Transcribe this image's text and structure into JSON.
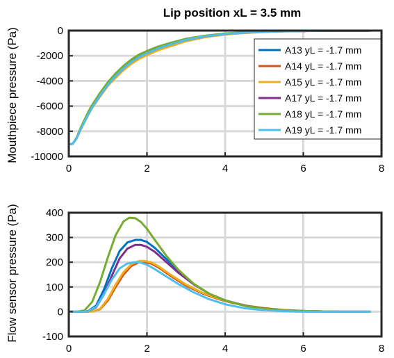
{
  "chart_data": [
    {
      "type": "line",
      "title": "Lip position xL = 3.5 mm",
      "xlabel": "",
      "ylabel": "Mouthpiece pressure (Pa)",
      "xlim": [
        0,
        8
      ],
      "ylim": [
        -10000,
        0
      ],
      "xticks": [
        "0",
        "2",
        "4",
        "6",
        "8"
      ],
      "yticks": [
        "0",
        "-2000",
        "-4000",
        "-6000",
        "-8000",
        "-10000"
      ],
      "grid": true,
      "legend_position": "top-right",
      "series": [
        {
          "name": "A13 yL = -1.7 mm",
          "color": "#0072BD",
          "x": [
            0,
            0.1,
            0.2,
            0.3,
            0.4,
            0.5,
            0.6,
            0.8,
            1.0,
            1.2,
            1.4,
            1.6,
            1.8,
            2.0,
            2.3,
            2.6,
            3.0,
            3.5,
            4.0,
            4.5,
            5.0,
            5.5,
            6.0,
            6.5,
            7.0,
            7.7
          ],
          "y": [
            -9050,
            -9000,
            -8550,
            -7850,
            -7200,
            -6600,
            -6050,
            -5100,
            -4250,
            -3550,
            -2950,
            -2450,
            -2050,
            -1750,
            -1350,
            -1050,
            -700,
            -430,
            -250,
            -150,
            -90,
            -50,
            -30,
            -15,
            -10,
            -5
          ]
        },
        {
          "name": "A14 yL = -1.7 mm",
          "color": "#D95319",
          "x": [
            0,
            0.1,
            0.2,
            0.3,
            0.4,
            0.5,
            0.6,
            0.8,
            1.0,
            1.2,
            1.4,
            1.6,
            1.8,
            2.0,
            2.3,
            2.6,
            3.0,
            3.5,
            4.0,
            4.5,
            5.0,
            5.5,
            6.0,
            6.5,
            7.0,
            7.7
          ],
          "y": [
            -9050,
            -9000,
            -8550,
            -7850,
            -7250,
            -6650,
            -6100,
            -5200,
            -4350,
            -3650,
            -3050,
            -2550,
            -2150,
            -1850,
            -1450,
            -1150,
            -780,
            -480,
            -290,
            -170,
            -100,
            -60,
            -35,
            -18,
            -10,
            -5
          ]
        },
        {
          "name": "A15 yL = -1.7 mm",
          "color": "#EDB120",
          "x": [
            0,
            0.1,
            0.2,
            0.3,
            0.4,
            0.5,
            0.6,
            0.8,
            1.0,
            1.2,
            1.4,
            1.6,
            1.8,
            2.0,
            2.3,
            2.6,
            3.0,
            3.5,
            4.0,
            4.5,
            5.0,
            5.5,
            6.0,
            6.5,
            7.0,
            7.7
          ],
          "y": [
            -9050,
            -9000,
            -8550,
            -7900,
            -7300,
            -6700,
            -6150,
            -5250,
            -4400,
            -3750,
            -3150,
            -2650,
            -2250,
            -1950,
            -1550,
            -1250,
            -850,
            -520,
            -320,
            -190,
            -110,
            -65,
            -40,
            -20,
            -10,
            -5
          ]
        },
        {
          "name": "A17 yL = -1.7 mm",
          "color": "#7E2F8E",
          "x": [
            0,
            0.1,
            0.2,
            0.3,
            0.4,
            0.5,
            0.6,
            0.8,
            1.0,
            1.2,
            1.4,
            1.6,
            1.8,
            2.0,
            2.3,
            2.6,
            3.0,
            3.5,
            4.0,
            4.5,
            5.0,
            5.5,
            6.0,
            6.5,
            7.0,
            7.7
          ],
          "y": [
            -9050,
            -9000,
            -8550,
            -7850,
            -7200,
            -6600,
            -6050,
            -5150,
            -4300,
            -3600,
            -3000,
            -2500,
            -2100,
            -1800,
            -1400,
            -1100,
            -740,
            -450,
            -270,
            -160,
            -95,
            -55,
            -32,
            -16,
            -10,
            -5
          ]
        },
        {
          "name": "A18 yL = -1.7 mm",
          "color": "#77AC30",
          "x": [
            0,
            0.1,
            0.2,
            0.3,
            0.4,
            0.5,
            0.6,
            0.8,
            1.0,
            1.2,
            1.4,
            1.6,
            1.8,
            2.0,
            2.3,
            2.6,
            3.0,
            3.5,
            4.0,
            4.5,
            5.0,
            5.5,
            6.0,
            6.5,
            7.0,
            7.7
          ],
          "y": [
            -9050,
            -9000,
            -8500,
            -7750,
            -7100,
            -6450,
            -5900,
            -4950,
            -4100,
            -3400,
            -2800,
            -2300,
            -1900,
            -1620,
            -1250,
            -980,
            -650,
            -400,
            -230,
            -140,
            -80,
            -45,
            -25,
            -12,
            -8,
            -5
          ]
        },
        {
          "name": "A19 yL = -1.7 mm",
          "color": "#4DBEEE",
          "x": [
            0,
            0.1,
            0.2,
            0.3,
            0.4,
            0.5,
            0.6,
            0.8,
            1.0,
            1.2,
            1.4,
            1.6,
            1.8,
            2.0,
            2.3,
            2.6,
            3.0,
            3.5,
            4.0,
            4.5,
            5.0,
            5.5,
            6.0,
            6.5,
            7.0,
            7.7
          ],
          "y": [
            -9050,
            -9000,
            -8550,
            -7850,
            -7250,
            -6650,
            -6100,
            -5150,
            -4300,
            -3600,
            -3000,
            -2500,
            -2100,
            -1800,
            -1400,
            -1100,
            -740,
            -450,
            -270,
            -160,
            -95,
            -55,
            -32,
            -16,
            -10,
            -5
          ]
        }
      ]
    },
    {
      "type": "line",
      "title": "",
      "xlabel": "",
      "ylabel": "Flow sensor pressure (Pa)",
      "xlim": [
        0,
        8
      ],
      "ylim": [
        -100,
        400
      ],
      "xticks": [
        "0",
        "2",
        "4",
        "6",
        "8"
      ],
      "yticks": [
        "400",
        "300",
        "200",
        "100",
        "0",
        "-100"
      ],
      "grid": true,
      "series": [
        {
          "name": "A13 yL = -1.7 mm",
          "color": "#0072BD",
          "x": [
            0,
            0.3,
            0.5,
            0.7,
            0.9,
            1.1,
            1.3,
            1.5,
            1.7,
            1.85,
            2.0,
            2.2,
            2.5,
            2.8,
            3.2,
            3.6,
            4.0,
            4.5,
            5.0,
            5.5,
            6.0,
            6.5,
            7.0,
            7.7
          ],
          "y": [
            0,
            0,
            3,
            25,
            90,
            175,
            245,
            280,
            290,
            290,
            282,
            258,
            212,
            165,
            112,
            72,
            45,
            24,
            12,
            6,
            3,
            1,
            0,
            0
          ]
        },
        {
          "name": "A14 yL = -1.7 mm",
          "color": "#D95319",
          "x": [
            0,
            0.4,
            0.6,
            0.8,
            1.0,
            1.2,
            1.4,
            1.6,
            1.8,
            1.95,
            2.1,
            2.3,
            2.6,
            3.0,
            3.4,
            3.8,
            4.2,
            4.6,
            5.0,
            5.5,
            6.0,
            6.5,
            7.0,
            7.7
          ],
          "y": [
            0,
            0,
            1,
            10,
            45,
            100,
            150,
            185,
            200,
            200,
            195,
            178,
            145,
            105,
            75,
            52,
            35,
            22,
            14,
            7,
            3,
            1,
            0,
            0
          ]
        },
        {
          "name": "A15 yL = -1.7 mm",
          "color": "#EDB120",
          "x": [
            0,
            0.4,
            0.6,
            0.8,
            1.0,
            1.2,
            1.4,
            1.6,
            1.8,
            1.95,
            2.1,
            2.3,
            2.6,
            3.0,
            3.4,
            3.8,
            4.2,
            4.6,
            5.0,
            5.5,
            6.0,
            6.5,
            7.0,
            7.7
          ],
          "y": [
            0,
            0,
            1,
            12,
            52,
            110,
            160,
            192,
            205,
            205,
            200,
            183,
            150,
            110,
            78,
            54,
            36,
            23,
            15,
            7,
            3,
            1,
            0,
            0
          ]
        },
        {
          "name": "A17 yL = -1.7 mm",
          "color": "#7E2F8E",
          "x": [
            0,
            0.3,
            0.5,
            0.7,
            0.9,
            1.1,
            1.3,
            1.5,
            1.7,
            1.85,
            2.0,
            2.2,
            2.5,
            2.8,
            3.2,
            3.6,
            4.0,
            4.5,
            5.0,
            5.5,
            6.0,
            6.5,
            7.0,
            7.7
          ],
          "y": [
            0,
            0,
            2,
            18,
            70,
            145,
            215,
            255,
            270,
            270,
            262,
            242,
            200,
            158,
            110,
            72,
            46,
            25,
            13,
            6,
            3,
            1,
            0,
            0
          ]
        },
        {
          "name": "A18 yL = -1.7 mm",
          "color": "#77AC30",
          "x": [
            0,
            0.2,
            0.4,
            0.6,
            0.8,
            1.0,
            1.2,
            1.4,
            1.55,
            1.7,
            1.85,
            2.0,
            2.2,
            2.5,
            2.8,
            3.2,
            3.6,
            4.0,
            4.5,
            5.0,
            5.5,
            6.0,
            6.5,
            7.0,
            7.7
          ],
          "y": [
            0,
            0,
            5,
            40,
            120,
            220,
            310,
            365,
            380,
            378,
            362,
            335,
            290,
            225,
            170,
            112,
            72,
            45,
            24,
            12,
            6,
            3,
            1,
            0,
            0
          ]
        },
        {
          "name": "A19 yL = -1.7 mm",
          "color": "#4DBEEE",
          "x": [
            0,
            0.3,
            0.5,
            0.7,
            0.9,
            1.1,
            1.3,
            1.5,
            1.7,
            1.85,
            2.0,
            2.2,
            2.5,
            2.8,
            3.2,
            3.6,
            4.0,
            4.5,
            5.0,
            5.5,
            6.0,
            6.5,
            7.0,
            7.7
          ],
          "y": [
            0,
            0,
            2,
            20,
            70,
            130,
            175,
            195,
            200,
            198,
            190,
            172,
            142,
            112,
            78,
            50,
            30,
            14,
            6,
            2,
            0,
            0,
            0,
            0
          ]
        }
      ]
    }
  ]
}
